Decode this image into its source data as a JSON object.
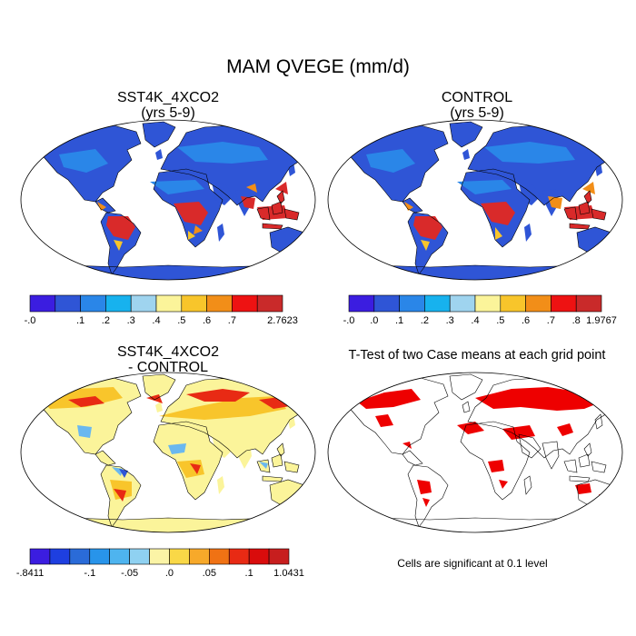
{
  "main_title": "MAM QVEGE (mm/d)",
  "panels": [
    {
      "id": "a",
      "title": "SST4K_4XCO2",
      "subtitle": "(yrs 5-9)"
    },
    {
      "id": "b",
      "title": "CONTROL",
      "subtitle": "(yrs 5-9)"
    },
    {
      "id": "c",
      "title": "SST4K_4XCO2",
      "subtitle": "- CONTROL"
    },
    {
      "id": "d",
      "title": "T-Test of two Case means at each grid point",
      "subtitle": ""
    }
  ],
  "significance_note": "Cells are significant at 0.1 level",
  "colorbars": [
    {
      "id": "cb-a",
      "colors": [
        "#3b1de0",
        "#2f55d6",
        "#2a86e8",
        "#17b2ee",
        "#9fd4ef",
        "#fbf49a",
        "#f8c52b",
        "#f28e18",
        "#ee1212",
        "#c92a2a"
      ],
      "labels": [
        "-.0",
        "",
        ".1",
        ".2",
        ".3",
        ".4",
        ".5",
        ".6",
        ".7",
        "",
        "2.7623"
      ]
    },
    {
      "id": "cb-b",
      "colors": [
        "#3b1de0",
        "#2f55d6",
        "#2a86e8",
        "#17b2ee",
        "#9fd4ef",
        "#fbf49a",
        "#f8c52b",
        "#f28e18",
        "#ee1212",
        "#c92a2a"
      ],
      "labels": [
        "-.0",
        ".0",
        ".1",
        ".2",
        ".3",
        ".4",
        ".5",
        ".6",
        ".7",
        ".8",
        "1.9767"
      ]
    },
    {
      "id": "cb-c",
      "colors": [
        "#3b1de0",
        "#1e3fe0",
        "#2a6bd8",
        "#2894ea",
        "#4eb4ef",
        "#8fd1f1",
        "#fbf4a6",
        "#f9d847",
        "#f7a92a",
        "#f07214",
        "#e82a14",
        "#d90c0c",
        "#c71e1e"
      ],
      "labels": [
        "-.8411",
        "",
        "",
        "-.1",
        "",
        "-.05",
        "",
        ".0",
        "",
        ".05",
        "",
        ".1",
        "",
        "1.0431"
      ]
    }
  ],
  "map_colors": {
    "a": {
      "ocean": "#ffffff",
      "land_dry": "#2f55d6",
      "land_mid": "#2a86e8",
      "tropics": "#d92a2a",
      "antarctica": "#2f55d6"
    },
    "b": {
      "ocean": "#ffffff",
      "land_dry": "#2f55d6",
      "land_mid": "#2a86e8",
      "tropics": "#d92a2a",
      "antarctica": "#2f55d6"
    },
    "c": {
      "ocean": "#ffffff",
      "land_base": "#fbf49a",
      "land_warm": "#f8c52b",
      "land_hot": "#e82a14",
      "land_cool": "#6ab8ef",
      "antarctica": "#fbf49a"
    },
    "d": {
      "ocean": "#ffffff",
      "land": "#ffffff",
      "significant": "#ee0000"
    }
  }
}
